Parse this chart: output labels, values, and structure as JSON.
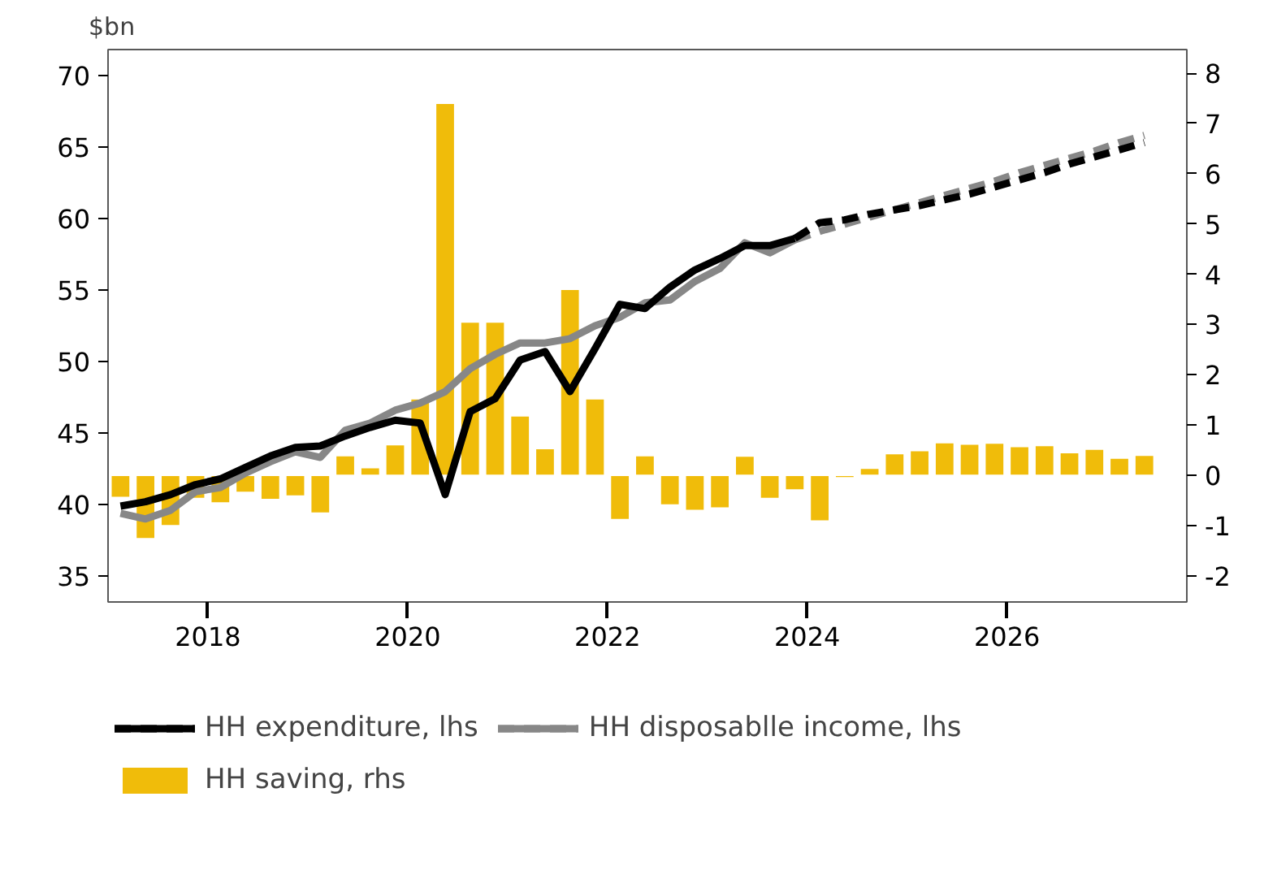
{
  "chart_data": {
    "type": "line",
    "ylabel": "$bn",
    "x": [
      2017.125,
      2017.375,
      2017.625,
      2017.875,
      2018.125,
      2018.375,
      2018.625,
      2018.875,
      2019.125,
      2019.375,
      2019.625,
      2019.875,
      2020.125,
      2020.375,
      2020.625,
      2020.875,
      2021.125,
      2021.375,
      2021.625,
      2021.875,
      2022.125,
      2022.375,
      2022.625,
      2022.875,
      2023.125,
      2023.375,
      2023.625,
      2023.875,
      2024.125,
      2024.375,
      2024.625,
      2024.875,
      2025.125,
      2025.375,
      2025.625,
      2025.875,
      2026.125,
      2026.375,
      2026.625,
      2026.875,
      2027.125,
      2027.375
    ],
    "xlim": [
      2017.0,
      2027.8
    ],
    "xticks": [
      2018,
      2020,
      2022,
      2024,
      2026
    ],
    "ylim": [
      33.2,
      71.8
    ],
    "yticks": [
      35,
      40,
      45,
      50,
      55,
      60,
      65,
      70
    ],
    "y2lim": [
      -2.52,
      8.47
    ],
    "y2ticks": [
      {
        "value": -2,
        "label": "-2"
      },
      {
        "value": -1,
        "label": "-1"
      },
      0,
      1,
      2,
      3,
      4,
      5,
      6,
      7,
      8
    ],
    "series": [
      {
        "name": "HH saving, rhs",
        "type": "bar",
        "axis": "y2",
        "color": "#f0bc0a",
        "values": [
          -0.44,
          -1.26,
          -1.0,
          -0.46,
          -0.55,
          -0.34,
          -0.48,
          -0.41,
          -0.75,
          0.39,
          0.15,
          0.61,
          1.52,
          7.4,
          3.05,
          3.05,
          1.18,
          0.53,
          3.7,
          1.52,
          -0.88,
          0.39,
          -0.59,
          -0.7,
          -0.65,
          0.38,
          -0.46,
          -0.29,
          -0.91,
          -0.05,
          0.14,
          0.43,
          0.49,
          0.65,
          0.62,
          0.64,
          0.57,
          0.59,
          0.45,
          0.52,
          0.34,
          0.4
        ]
      },
      {
        "name": "HH disposablle income, lhs",
        "line_style": "solid",
        "color": "#878787",
        "values": [
          39.4,
          39.0,
          39.6,
          40.9,
          41.2,
          42.2,
          43.0,
          43.7,
          43.3,
          45.2,
          45.7,
          46.6,
          47.1,
          47.9,
          49.5,
          50.5,
          51.3,
          51.3,
          51.6,
          52.5,
          53.1,
          54.1,
          54.3,
          55.6,
          56.5,
          58.3,
          57.6,
          58.5,
          null,
          null,
          null,
          null,
          null,
          null,
          null,
          null,
          null,
          null,
          null,
          null,
          null,
          null
        ]
      },
      {
        "line_style": "dashed",
        "color": "#878787",
        "values": [
          null,
          null,
          null,
          null,
          null,
          null,
          null,
          null,
          null,
          null,
          null,
          null,
          null,
          null,
          null,
          null,
          null,
          null,
          null,
          null,
          null,
          null,
          null,
          null,
          null,
          null,
          null,
          58.5,
          59.1,
          59.6,
          60.1,
          60.6,
          61.1,
          61.6,
          62.1,
          62.6,
          63.2,
          63.7,
          64.2,
          64.7,
          65.3,
          65.8
        ]
      },
      {
        "name": "HH expenditure, lhs",
        "line_style": "solid",
        "color": "#000000",
        "values": [
          39.9,
          40.2,
          40.7,
          41.4,
          41.8,
          42.6,
          43.4,
          44.0,
          44.1,
          44.8,
          45.4,
          45.9,
          45.7,
          40.7,
          46.5,
          47.4,
          50.1,
          50.7,
          47.9,
          50.9,
          54.0,
          53.7,
          55.2,
          56.4,
          57.2,
          58.1,
          58.1,
          58.6,
          null,
          null,
          null,
          null,
          null,
          null,
          null,
          null,
          null,
          null,
          null,
          null,
          null,
          null
        ]
      },
      {
        "line_style": "dashed",
        "color": "#000000",
        "values": [
          null,
          null,
          null,
          null,
          null,
          null,
          null,
          null,
          null,
          null,
          null,
          null,
          null,
          null,
          null,
          null,
          null,
          null,
          null,
          null,
          null,
          null,
          null,
          null,
          null,
          null,
          null,
          58.6,
          59.7,
          59.9,
          60.3,
          60.6,
          60.9,
          61.3,
          61.7,
          62.2,
          62.7,
          63.2,
          63.8,
          64.3,
          64.8,
          65.3
        ]
      }
    ],
    "legend": "bottom",
    "grid": false
  }
}
